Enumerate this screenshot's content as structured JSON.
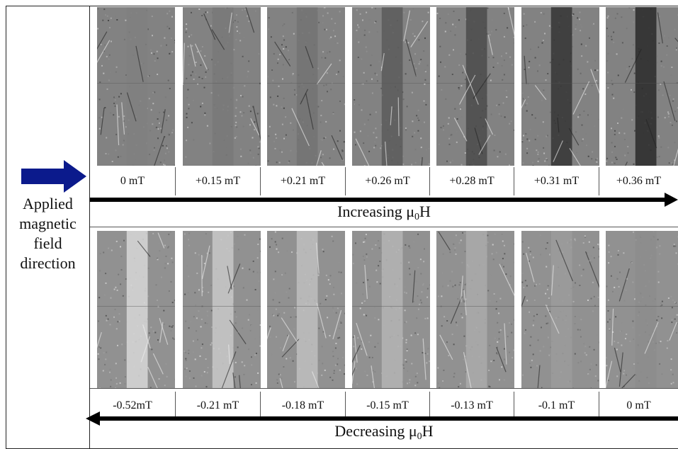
{
  "left": {
    "label_lines": [
      "Applied",
      "magnetic",
      "field",
      "direction"
    ],
    "arrow_color": "#0b1a8c"
  },
  "top_row": {
    "labels": [
      "0 mT",
      "+0.15 mT",
      "+0.21 mT",
      "+0.26 mT",
      "+0.28 mT",
      "+0.31 mT",
      "+0.36 mT"
    ],
    "band_darkness": [
      0.02,
      0.08,
      0.14,
      0.35,
      0.5,
      0.7,
      0.8
    ],
    "arrow_text": "Increasing μ",
    "arrow_sub": "0",
    "arrow_suffix": "H",
    "arrow_direction": "right"
  },
  "bottom_row": {
    "labels": [
      "-0.52mT",
      "-0.21 mT",
      "-0.18 mT",
      "-0.15 mT",
      "-0.13 mT",
      "-0.1 mT",
      "0 mT"
    ],
    "band_lightness": [
      0.75,
      0.6,
      0.5,
      0.4,
      0.3,
      0.15,
      0.0
    ],
    "arrow_text": "Decreasing μ",
    "arrow_sub": "0",
    "arrow_suffix": "H",
    "arrow_direction": "left"
  }
}
